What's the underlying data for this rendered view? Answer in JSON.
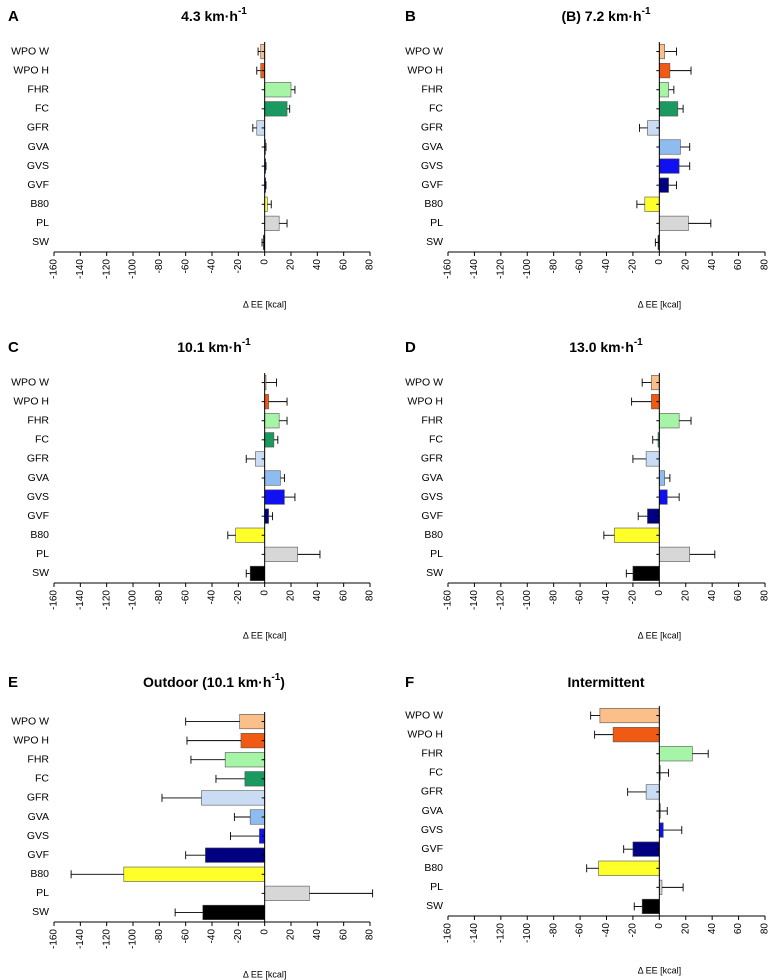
{
  "colors": {
    "WPO W": "#fbbf8a",
    "WPO H": "#f05a12",
    "FHR": "#a6f4a6",
    "FC": "#1a9a60",
    "GFR": "#c9dcf4",
    "GVA": "#8fbcf0",
    "GVS": "#1010f0",
    "GVF": "#000080",
    "B80": "#ffff2a",
    "PL": "#d7d7d7",
    "SW": "#000000"
  },
  "chart_data": [
    {
      "type": "bar",
      "orientation": "horizontal",
      "panel_letter": "A",
      "title_main": "4.3 km·h",
      "title_sup": "-1",
      "title_suffix": "",
      "xlabel": "Δ EE [kcal]",
      "xlim": [
        -160,
        80
      ],
      "xticks": [
        "-160",
        "-140",
        "-120",
        "-100",
        "-80",
        "-60",
        "-40",
        "-20",
        "0",
        "20",
        "40",
        "60",
        "80"
      ],
      "categories": [
        "WPO W",
        "WPO H",
        "FHR",
        "FC",
        "GFR",
        "GVA",
        "GVS",
        "GVF",
        "B80",
        "PL",
        "SW"
      ],
      "values": [
        -3,
        -3,
        20,
        17,
        -6,
        0,
        0,
        0,
        2,
        11,
        -1
      ],
      "errors": [
        2,
        3,
        3,
        2,
        3,
        1,
        1,
        1,
        3,
        6,
        1
      ]
    },
    {
      "type": "bar",
      "orientation": "horizontal",
      "panel_letter": "B",
      "title_main": "(B) 7.2 km·h",
      "title_sup": "-1",
      "title_suffix": "",
      "xlabel": "Δ EE [kcal]",
      "xlim": [
        -160,
        80
      ],
      "xticks": [
        "-160",
        "-140",
        "-120",
        "-100",
        "-80",
        "-60",
        "-40",
        "-20",
        "0",
        "20",
        "40",
        "60",
        "80"
      ],
      "categories": [
        "WPO W",
        "WPO H",
        "FHR",
        "FC",
        "GFR",
        "GVA",
        "GVS",
        "GVF",
        "B80",
        "PL",
        "SW"
      ],
      "values": [
        4,
        8,
        7,
        14,
        -9,
        16,
        15,
        7,
        -11,
        22,
        -1
      ],
      "errors": [
        9,
        16,
        4,
        4,
        6,
        7,
        8,
        6,
        6,
        17,
        2
      ]
    },
    {
      "type": "bar",
      "orientation": "horizontal",
      "panel_letter": "C",
      "title_main": "10.1 km·h",
      "title_sup": "-1",
      "title_suffix": "",
      "xlabel": "Δ EE [kcal]",
      "xlim": [
        -160,
        80
      ],
      "xticks": [
        "-160",
        "-140",
        "-120",
        "-100",
        "-80",
        "-60",
        "-40",
        "-20",
        "0",
        "20",
        "40",
        "60",
        "80"
      ],
      "categories": [
        "WPO W",
        "WPO H",
        "FHR",
        "FC",
        "GFR",
        "GVA",
        "GVS",
        "GVF",
        "B80",
        "PL",
        "SW"
      ],
      "values": [
        1,
        3,
        11,
        7,
        -7,
        12,
        15,
        3,
        -22,
        25,
        -11
      ],
      "errors": [
        8,
        14,
        6,
        3,
        7,
        3,
        8,
        3,
        6,
        17,
        3
      ]
    },
    {
      "type": "bar",
      "orientation": "horizontal",
      "panel_letter": "D",
      "title_main": "13.0 km·h",
      "title_sup": "-1",
      "title_suffix": "",
      "xlabel": "Δ EE [kcal]",
      "xlim": [
        -160,
        80
      ],
      "xticks": [
        "-160",
        "-140",
        "-120",
        "-100",
        "-80",
        "-60",
        "-40",
        "-20",
        "0",
        "20",
        "40",
        "60",
        "80"
      ],
      "categories": [
        "WPO W",
        "WPO H",
        "FHR",
        "FC",
        "GFR",
        "GVA",
        "GVS",
        "GVF",
        "B80",
        "PL",
        "SW"
      ],
      "values": [
        -6,
        -6,
        15,
        -1,
        -10,
        4,
        6,
        -9,
        -34,
        23,
        -20
      ],
      "errors": [
        7,
        15,
        9,
        4,
        10,
        4,
        9,
        7,
        8,
        19,
        5
      ]
    },
    {
      "type": "bar",
      "orientation": "horizontal",
      "panel_letter": "E",
      "title_main": "Outdoor (10.1 km·h",
      "title_sup": "-1",
      "title_suffix": ")",
      "xlabel": "Δ EE [kcal]",
      "xlim": [
        -160,
        80
      ],
      "xticks": [
        "-160",
        "-140",
        "-120",
        "-100",
        "-80",
        "-60",
        "-40",
        "-20",
        "0",
        "20",
        "40",
        "60",
        "80"
      ],
      "categories": [
        "WPO W",
        "WPO H",
        "FHR",
        "FC",
        "GFR",
        "GVA",
        "GVS",
        "GVF",
        "B80",
        "PL",
        "SW"
      ],
      "values": [
        -19,
        -18,
        -30,
        -15,
        -48,
        -11,
        -4,
        -45,
        -107,
        34,
        -47
      ],
      "errors": [
        41,
        41,
        26,
        22,
        30,
        12,
        22,
        15,
        40,
        48,
        21
      ]
    },
    {
      "type": "bar",
      "orientation": "horizontal",
      "panel_letter": "F",
      "title_main": "Intermittent",
      "title_sup": "",
      "title_suffix": "",
      "xlabel": "Δ EE [kcal]",
      "xlim": [
        -160,
        80
      ],
      "xticks": [
        "-160",
        "-140",
        "-120",
        "-100",
        "-80",
        "-60",
        "-40",
        "-20",
        "0",
        "20",
        "40",
        "60",
        "80"
      ],
      "categories": [
        "WPO W",
        "WPO H",
        "FHR",
        "FC",
        "GFR",
        "GVA",
        "GVS",
        "GVF",
        "B80",
        "PL",
        "SW"
      ],
      "values": [
        -45,
        -35,
        25,
        0,
        -10,
        0,
        3,
        -20,
        -46,
        2,
        -13
      ],
      "errors": [
        7,
        14,
        12,
        7,
        14,
        6,
        14,
        7,
        9,
        16,
        6
      ]
    }
  ]
}
